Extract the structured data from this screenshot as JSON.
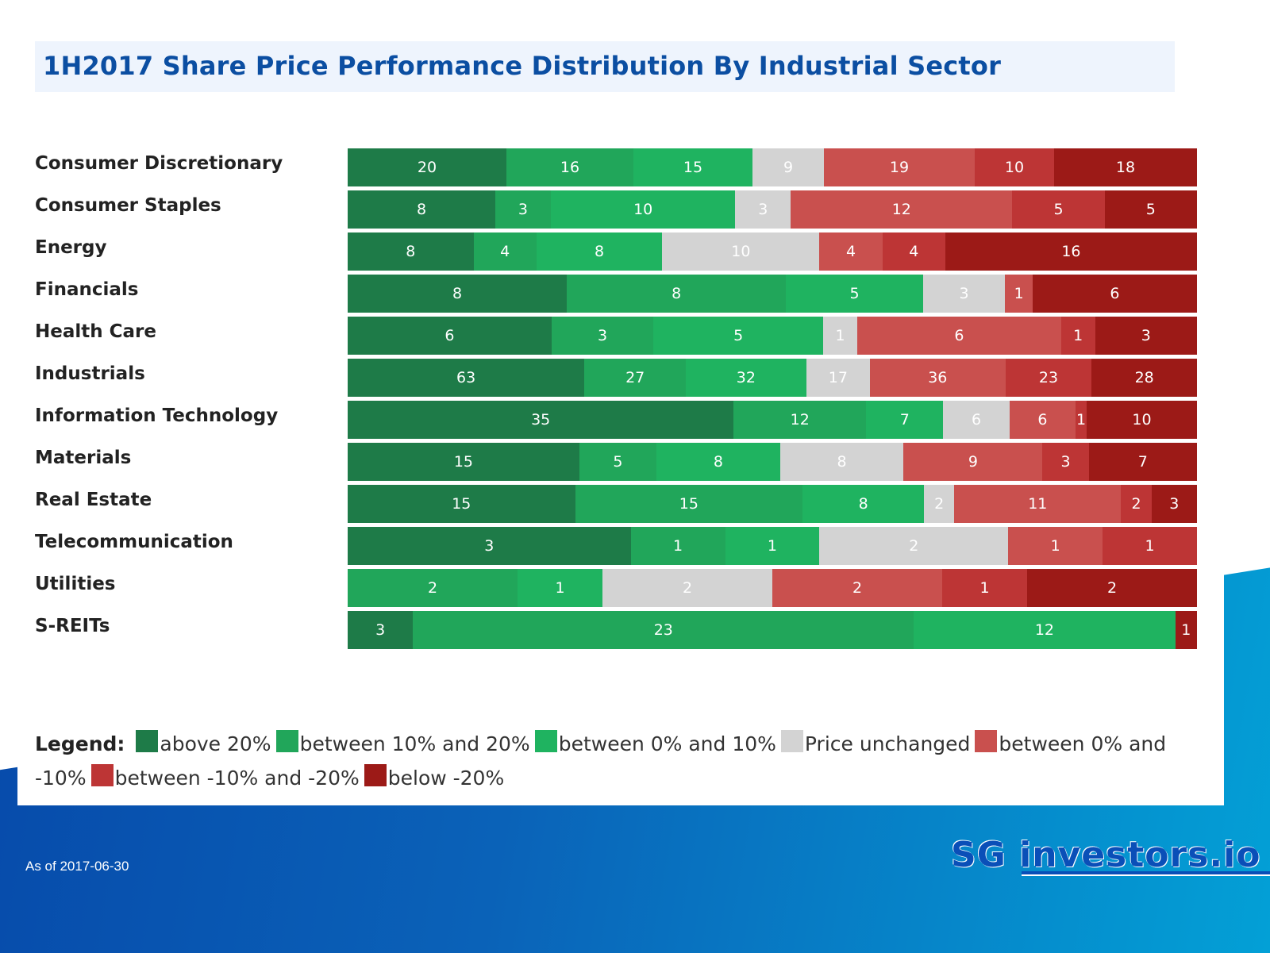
{
  "title": "1H2017 Share Price Performance Distribution By Industrial Sector",
  "footer": "As of 2017-06-30",
  "logo": "SG investors.io",
  "chart_data": {
    "type": "bar",
    "orientation": "horizontal",
    "stacked": "100%",
    "title": "1H2017 Share Price Performance Distribution By Industrial Sector",
    "categories": [
      "Consumer Discretionary",
      "Consumer Staples",
      "Energy",
      "Financials",
      "Health Care",
      "Industrials",
      "Information Technology",
      "Materials",
      "Real Estate",
      "Telecommunication",
      "Utilities",
      "S-REITs"
    ],
    "series": [
      {
        "name": "above 20%",
        "color": "#1e7b48",
        "values": [
          20,
          8,
          8,
          8,
          6,
          63,
          35,
          15,
          15,
          3,
          0,
          3
        ]
      },
      {
        "name": "between 10% and 20%",
        "color": "#21a65a",
        "values": [
          16,
          3,
          4,
          8,
          3,
          27,
          12,
          5,
          15,
          1,
          2,
          23
        ]
      },
      {
        "name": "between 0% and 10%",
        "color": "#1fb360",
        "values": [
          15,
          10,
          8,
          5,
          5,
          32,
          7,
          8,
          8,
          1,
          1,
          12
        ]
      },
      {
        "name": "Price unchanged",
        "color": "#d3d3d3",
        "values": [
          9,
          3,
          10,
          3,
          1,
          17,
          6,
          8,
          2,
          2,
          2,
          0
        ]
      },
      {
        "name": "between 0% and -10%",
        "color": "#c9504e",
        "values": [
          19,
          12,
          4,
          1,
          6,
          36,
          6,
          9,
          11,
          1,
          2,
          0
        ]
      },
      {
        "name": "between -10% and -20%",
        "color": "#bd3535",
        "values": [
          10,
          5,
          4,
          0,
          1,
          23,
          1,
          3,
          2,
          1,
          1,
          0
        ]
      },
      {
        "name": "below -20%",
        "color": "#9c1a17",
        "values": [
          18,
          5,
          16,
          6,
          3,
          28,
          10,
          7,
          3,
          0,
          2,
          1
        ]
      }
    ],
    "legend_title": "Legend:",
    "legend_position": "bottom",
    "grid": false
  }
}
